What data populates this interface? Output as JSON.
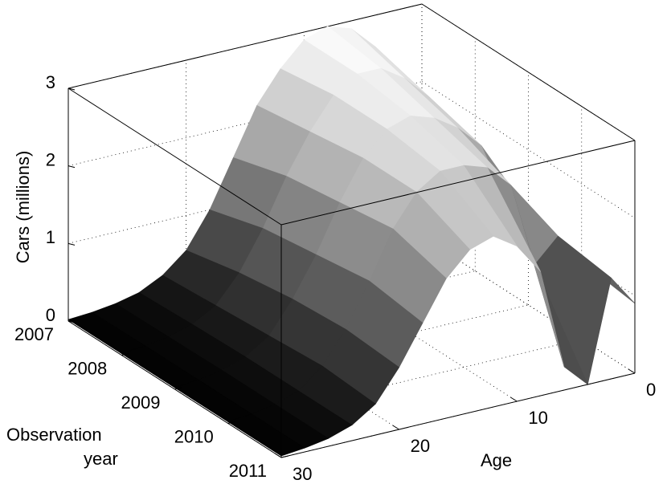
{
  "chart_data": {
    "type": "surface",
    "zlabel": "Cars (millions)",
    "xlabel": "Age",
    "ylabel": [
      "Observation",
      "year"
    ],
    "x": [
      0,
      2,
      4,
      6,
      8,
      10,
      12,
      14,
      16,
      18,
      20,
      22,
      24,
      26,
      28,
      30
    ],
    "y": [
      2007,
      2008,
      2009,
      2010,
      2011
    ],
    "values": [
      [
        1.5,
        2.2,
        2.6,
        2.9,
        3.0,
        2.9,
        2.6,
        2.2,
        1.6,
        1.0,
        0.55,
        0.3,
        0.15,
        0.08,
        0.04,
        0.02
      ],
      [
        1.5,
        1.9,
        2.4,
        2.7,
        2.9,
        2.9,
        2.7,
        2.3,
        1.8,
        1.2,
        0.7,
        0.35,
        0.18,
        0.09,
        0.05,
        0.02
      ],
      [
        1.2,
        1.7,
        2.2,
        2.5,
        2.7,
        2.8,
        2.7,
        2.4,
        1.9,
        1.3,
        0.8,
        0.4,
        0.2,
        0.1,
        0.05,
        0.02
      ],
      [
        1.0,
        1.4,
        1.1,
        2.2,
        2.5,
        2.6,
        2.6,
        2.4,
        2.0,
        1.4,
        0.85,
        0.45,
        0.2,
        0.1,
        0.05,
        0.02
      ],
      [
        0.9,
        1.3,
        0.0,
        0.3,
        1.6,
        2.0,
        2.2,
        2.1,
        1.8,
        1.3,
        0.8,
        0.4,
        0.2,
        0.1,
        0.05,
        0.02
      ]
    ],
    "xlim": [
      0,
      30
    ],
    "xticks": [
      0,
      10,
      20,
      30
    ],
    "ylim": [
      2007,
      2011
    ],
    "yticks": [
      2007,
      2008,
      2009,
      2010,
      2011
    ],
    "zlim": [
      0,
      3
    ],
    "zticks": [
      0,
      1,
      2,
      3
    ],
    "grid": true,
    "colormap": "gray"
  }
}
